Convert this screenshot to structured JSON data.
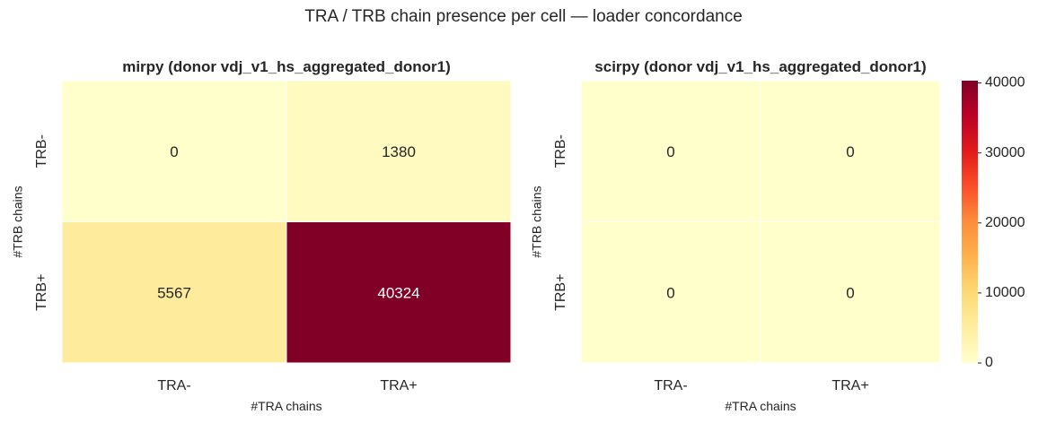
{
  "suptitle": "TRA / TRB chain presence per cell — loader concordance",
  "chart_data": [
    {
      "type": "heatmap",
      "title": "mirpy  (donor vdj_v1_hs_aggregated_donor1)",
      "xlabel": "#TRA chains",
      "ylabel": "#TRB chains",
      "x_categories": [
        "TRA-",
        "TRA+"
      ],
      "y_categories": [
        "TRB-",
        "TRB+"
      ],
      "values": [
        [
          0,
          1380
        ],
        [
          5567,
          40324
        ]
      ],
      "colormap": "YlOrRd",
      "vmin": 0,
      "vmax": 40324
    },
    {
      "type": "heatmap",
      "title": "scirpy  (donor vdj_v1_hs_aggregated_donor1)",
      "xlabel": "#TRA chains",
      "ylabel": "#TRB chains",
      "x_categories": [
        "TRA-",
        "TRA+"
      ],
      "y_categories": [
        "TRB-",
        "TRB+"
      ],
      "values": [
        [
          0,
          0
        ],
        [
          0,
          0
        ]
      ],
      "colormap": "YlOrRd",
      "vmin": 0,
      "vmax": 40324,
      "colorbar": {
        "ticks": [
          0,
          10000,
          20000,
          30000,
          40000
        ],
        "tick_labels": [
          "0",
          "10000",
          "20000",
          "30000",
          "40000"
        ]
      }
    }
  ]
}
